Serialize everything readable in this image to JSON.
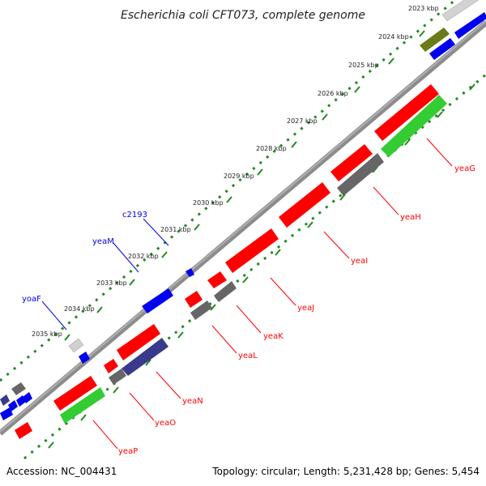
{
  "title": "Escherichia coli CFT073, complete genome",
  "footer": {
    "accession": "Accession: NC_004431",
    "summary": "Topology: circular; Length: 5,231,428 bp; Genes: 5,454"
  },
  "ticks": [
    "2023 kbp",
    "2024 kbp",
    "2025 kbp",
    "2026 kbp",
    "2027 kbp",
    "2028 kbp",
    "2029 kbp",
    "2030 kbp",
    "2031 kbp",
    "2032 kbp",
    "2033 kbp",
    "2034 kbp",
    "2035 kbp"
  ],
  "labels": {
    "blue": [
      "c2193",
      "yeaM",
      "yoaF"
    ],
    "red": [
      "yeaG",
      "yeaH",
      "yeaI",
      "yeaJ",
      "yeaK",
      "yeaL",
      "yeaN",
      "yeaO",
      "yeaP"
    ]
  },
  "colors": {
    "red": "#ff0000",
    "blue": "#0000ff",
    "green": "#33cc33",
    "gray": "#666666",
    "slate": "#3a3a8c",
    "olive": "#6b7a1a",
    "lightgray": "#cccccc",
    "backbone": "#8c8c8c",
    "tickline": "#228822"
  }
}
